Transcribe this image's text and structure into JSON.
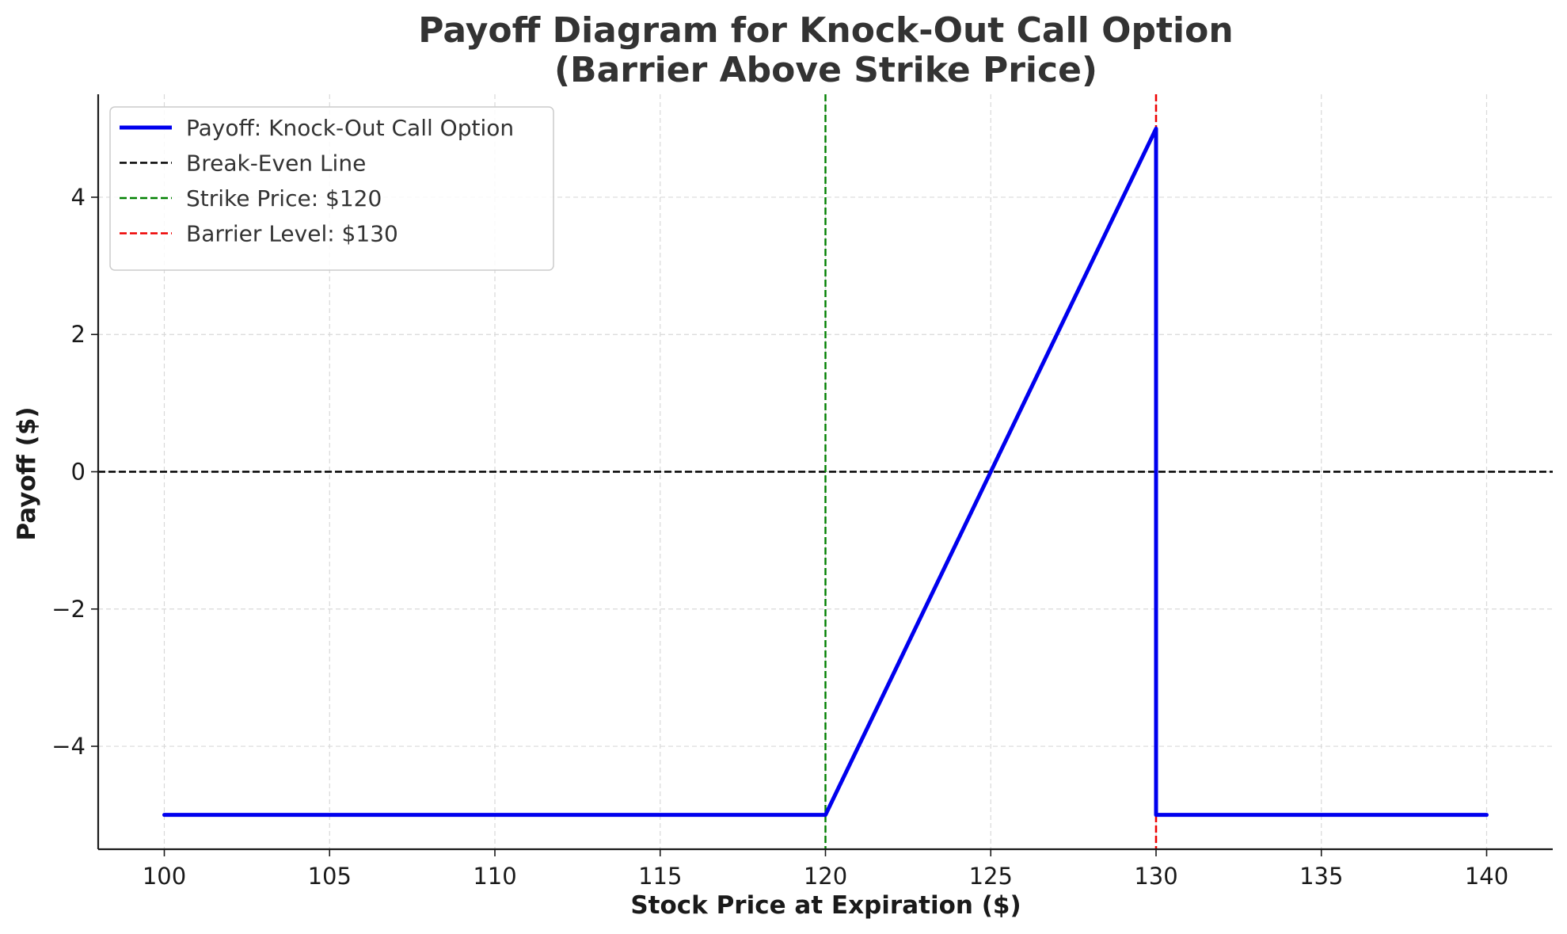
{
  "chart_data": {
    "type": "line",
    "title_line1": "Payoff Diagram for Knock-Out Call Option",
    "title_line2": "(Barrier Above Strike Price)",
    "xlabel": "Stock Price at Expiration ($)",
    "ylabel": "Payoff ($)",
    "xlim": [
      98,
      142
    ],
    "ylim": [
      -5.5,
      5.5
    ],
    "xticks": [
      100,
      105,
      110,
      115,
      120,
      125,
      130,
      135,
      140
    ],
    "yticks": [
      -4,
      -2,
      0,
      2,
      4
    ],
    "ytick_labels": [
      "−4",
      "−2",
      "0",
      "2",
      "4"
    ],
    "grid": true,
    "legend_position": "top-left",
    "series": [
      {
        "name": "Payoff: Knock-Out Call Option",
        "color": "#0000ee",
        "style": "solid",
        "x": [
          100,
          120,
          130,
          130,
          140
        ],
        "y": [
          -5,
          -5,
          5,
          -5,
          -5
        ]
      }
    ],
    "reference_lines": [
      {
        "name": "Break-Even Line",
        "orientation": "horizontal",
        "value": 0,
        "color": "#000000"
      },
      {
        "name": "Strike Price: $120",
        "orientation": "vertical",
        "value": 120,
        "color": "#008000"
      },
      {
        "name": "Barrier Level: $130",
        "orientation": "vertical",
        "value": 130,
        "color": "#ee0000"
      }
    ]
  }
}
